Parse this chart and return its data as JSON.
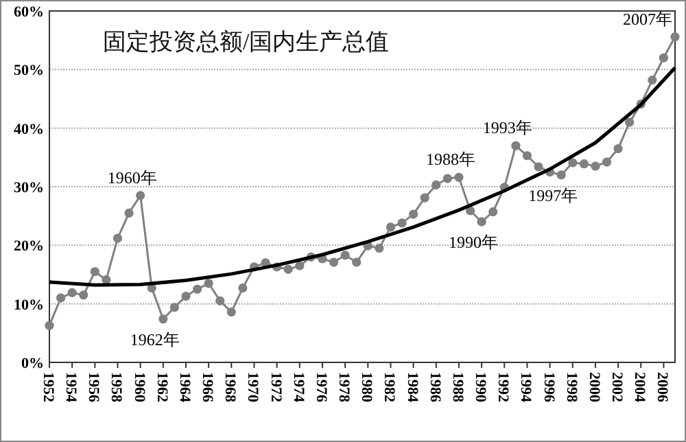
{
  "chart_data": {
    "type": "line",
    "title": "固定投资总额/国内生产总值",
    "x": [
      1952,
      1953,
      1954,
      1955,
      1956,
      1957,
      1958,
      1959,
      1960,
      1961,
      1962,
      1963,
      1964,
      1965,
      1966,
      1967,
      1968,
      1969,
      1970,
      1971,
      1972,
      1973,
      1974,
      1975,
      1976,
      1977,
      1978,
      1979,
      1980,
      1981,
      1982,
      1983,
      1984,
      1985,
      1986,
      1987,
      1988,
      1989,
      1990,
      1991,
      1992,
      1993,
      1994,
      1995,
      1996,
      1997,
      1998,
      1999,
      2000,
      2001,
      2002,
      2003,
      2004,
      2005,
      2006,
      2007
    ],
    "series": [
      {
        "color": "#808080",
        "marker": "circle",
        "values": [
          6.3,
          11.0,
          11.9,
          11.5,
          15.5,
          14.1,
          21.2,
          25.5,
          28.5,
          12.7,
          7.4,
          9.4,
          11.3,
          12.5,
          13.5,
          10.5,
          8.6,
          12.7,
          16.3,
          17.0,
          16.3,
          15.9,
          16.5,
          18.0,
          17.7,
          17.1,
          18.3,
          17.1,
          19.9,
          19.5,
          23.1,
          23.8,
          25.3,
          28.1,
          30.3,
          31.4,
          31.6,
          25.9,
          24.0,
          25.7,
          29.9,
          37.0,
          35.3,
          33.4,
          32.5,
          32.0,
          34.1,
          33.9,
          33.5,
          34.2,
          36.5,
          41.0,
          44.1,
          48.2,
          52.0,
          55.6
        ]
      },
      {
        "type": "line",
        "color": "#000000",
        "marker": "none",
        "x": [
          1952,
          1956,
          1960,
          1964,
          1968,
          1972,
          1976,
          1980,
          1984,
          1988,
          1992,
          1996,
          2000,
          2004,
          2007
        ],
        "values": [
          13.7,
          13.2,
          13.3,
          14.0,
          15.1,
          16.6,
          18.4,
          20.6,
          23.1,
          26.0,
          29.3,
          33.0,
          37.5,
          44.0,
          50.3
        ]
      }
    ],
    "xlim": [
      1952,
      2007
    ],
    "xticks": [
      1952,
      1954,
      1956,
      1958,
      1960,
      1962,
      1964,
      1966,
      1968,
      1970,
      1972,
      1974,
      1976,
      1978,
      1980,
      1982,
      1984,
      1986,
      1988,
      1990,
      1992,
      1994,
      1996,
      1998,
      2000,
      2002,
      2004,
      2006
    ],
    "ylim": [
      0,
      60
    ],
    "yticks": [
      {
        "value": 0,
        "label": "0%"
      },
      {
        "value": 10,
        "label": "10%"
      },
      {
        "value": 20,
        "label": "20%"
      },
      {
        "value": 30,
        "label": "30%"
      },
      {
        "value": 40,
        "label": "40%"
      },
      {
        "value": 50,
        "label": "50%"
      },
      {
        "value": 60,
        "label": "60%"
      }
    ],
    "grid": "y",
    "annotations": [
      {
        "text": "1960年",
        "x": 1960,
        "y": 28.5
      },
      {
        "text": "1962年",
        "x": 1962,
        "y": 7.4
      },
      {
        "text": "1988年",
        "x": 1988,
        "y": 31.6
      },
      {
        "text": "1990年",
        "x": 1990,
        "y": 24.0
      },
      {
        "text": "1993年",
        "x": 1993,
        "y": 37.0
      },
      {
        "text": "1997年",
        "x": 1997,
        "y": 32.0
      },
      {
        "text": "2007年",
        "x": 2007,
        "y": 55.6
      }
    ]
  }
}
